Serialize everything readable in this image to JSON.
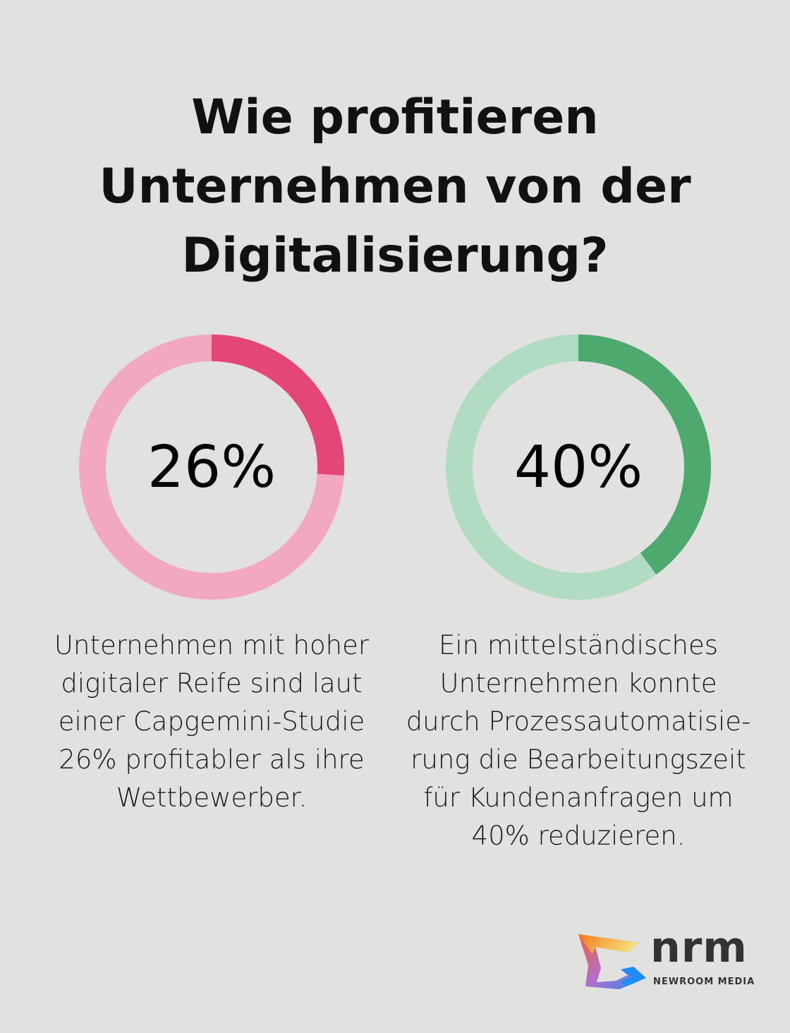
{
  "title": "Wie profitieren Unternehmen von der Digitalisierung?",
  "chart_data": [
    {
      "type": "pie",
      "variant": "donut",
      "value": 26,
      "max": 100,
      "label": "26%",
      "colors": {
        "value": "#e44677",
        "rest": "#f2a9c0"
      },
      "description": "Unternehmen mit hoher digitaler Reife sind laut einer Capgemini-Studie 26% profitabler als ihre Wettbewerber."
    },
    {
      "type": "pie",
      "variant": "donut",
      "value": 40,
      "max": 100,
      "label": "40%",
      "colors": {
        "value": "#4ea96e",
        "rest": "#b2dcc2"
      },
      "description": "Ein mittelständisches Unternehmen konnte durch Prozessautomatisie-rung die Bearbeitungszeit für Kundenanfragen um 40% reduzieren."
    }
  ],
  "logo": {
    "name": "nrm",
    "subtitle": "NEWROOM MEDIA"
  }
}
